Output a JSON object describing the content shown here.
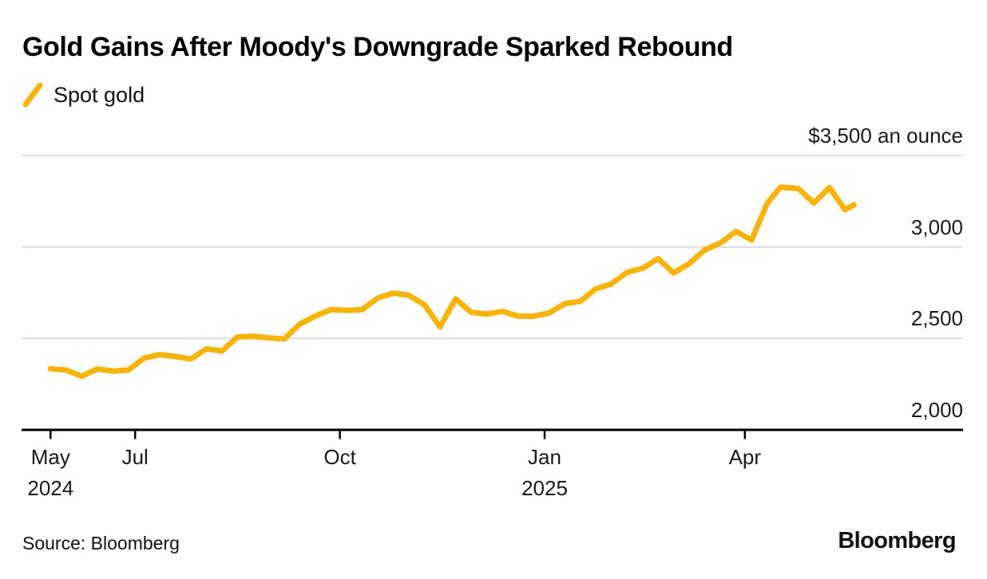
{
  "header": {
    "title": "Gold Gains After Moody's Downgrade Sparked Rebound"
  },
  "footer": {
    "source": "Source: Bloomberg",
    "brand": "Bloomberg"
  },
  "chart_data": {
    "type": "line",
    "title": "Gold Gains After Moody's Downgrade Sparked Rebound",
    "legend": [
      "Spot gold"
    ],
    "legend_position": "top-left",
    "grid": "horizontal",
    "ylim": [
      2000,
      3500
    ],
    "y_axis": {
      "ticks": [
        {
          "value": 3500,
          "label": "$3,500 an ounce"
        },
        {
          "value": 3000,
          "label": "3,000"
        },
        {
          "value": 2500,
          "label": "2,500"
        },
        {
          "value": 2000,
          "label": "2,000"
        }
      ]
    },
    "x_axis": {
      "ticks": [
        {
          "date": "2024-05-24",
          "label": "May",
          "year": "2024"
        },
        {
          "date": "2024-07-01",
          "label": "Jul"
        },
        {
          "date": "2024-10-01",
          "label": "Oct"
        },
        {
          "date": "2025-01-01",
          "label": "Jan",
          "year": "2025"
        },
        {
          "date": "2025-04-01",
          "label": "Apr"
        }
      ]
    },
    "series": [
      {
        "name": "Spot gold",
        "color": "#F6B40C",
        "points": [
          {
            "date": "2024-05-24",
            "value": 2334
          },
          {
            "date": "2024-05-31",
            "value": 2327
          },
          {
            "date": "2024-06-07",
            "value": 2293
          },
          {
            "date": "2024-06-14",
            "value": 2333
          },
          {
            "date": "2024-06-21",
            "value": 2322
          },
          {
            "date": "2024-06-28",
            "value": 2327
          },
          {
            "date": "2024-07-05",
            "value": 2392
          },
          {
            "date": "2024-07-12",
            "value": 2411
          },
          {
            "date": "2024-07-19",
            "value": 2401
          },
          {
            "date": "2024-07-26",
            "value": 2387
          },
          {
            "date": "2024-08-02",
            "value": 2443
          },
          {
            "date": "2024-08-09",
            "value": 2431
          },
          {
            "date": "2024-08-16",
            "value": 2508
          },
          {
            "date": "2024-08-23",
            "value": 2512
          },
          {
            "date": "2024-08-30",
            "value": 2503
          },
          {
            "date": "2024-09-06",
            "value": 2497
          },
          {
            "date": "2024-09-13",
            "value": 2578
          },
          {
            "date": "2024-09-20",
            "value": 2622
          },
          {
            "date": "2024-09-27",
            "value": 2658
          },
          {
            "date": "2024-10-04",
            "value": 2653
          },
          {
            "date": "2024-10-11",
            "value": 2657
          },
          {
            "date": "2024-10-18",
            "value": 2721
          },
          {
            "date": "2024-10-25",
            "value": 2748
          },
          {
            "date": "2024-11-01",
            "value": 2736
          },
          {
            "date": "2024-11-08",
            "value": 2684
          },
          {
            "date": "2024-11-15",
            "value": 2563
          },
          {
            "date": "2024-11-22",
            "value": 2716
          },
          {
            "date": "2024-11-29",
            "value": 2643
          },
          {
            "date": "2024-12-06",
            "value": 2633
          },
          {
            "date": "2024-12-13",
            "value": 2648
          },
          {
            "date": "2024-12-20",
            "value": 2622
          },
          {
            "date": "2024-12-27",
            "value": 2621
          },
          {
            "date": "2025-01-03",
            "value": 2639
          },
          {
            "date": "2025-01-10",
            "value": 2690
          },
          {
            "date": "2025-01-17",
            "value": 2703
          },
          {
            "date": "2025-01-24",
            "value": 2771
          },
          {
            "date": "2025-01-31",
            "value": 2798
          },
          {
            "date": "2025-02-07",
            "value": 2861
          },
          {
            "date": "2025-02-14",
            "value": 2883
          },
          {
            "date": "2025-02-21",
            "value": 2936
          },
          {
            "date": "2025-02-28",
            "value": 2858
          },
          {
            "date": "2025-03-07",
            "value": 2909
          },
          {
            "date": "2025-03-14",
            "value": 2984
          },
          {
            "date": "2025-03-21",
            "value": 3022
          },
          {
            "date": "2025-03-28",
            "value": 3085
          },
          {
            "date": "2025-04-04",
            "value": 3038
          },
          {
            "date": "2025-04-11",
            "value": 3238
          },
          {
            "date": "2025-04-17",
            "value": 3327
          },
          {
            "date": "2025-04-25",
            "value": 3320
          },
          {
            "date": "2025-05-02",
            "value": 3240
          },
          {
            "date": "2025-05-09",
            "value": 3325
          },
          {
            "date": "2025-05-16",
            "value": 3203
          },
          {
            "date": "2025-05-20",
            "value": 3230
          }
        ]
      }
    ]
  }
}
